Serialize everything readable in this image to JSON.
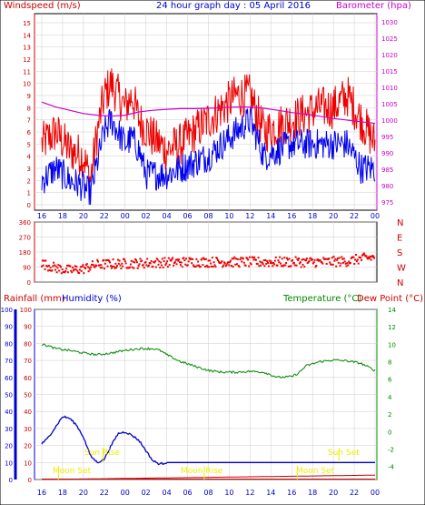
{
  "header": {
    "left_label": "Windspeed (m/s)",
    "center_title": "24 hour graph day : 05 April 2016",
    "right_label": "Barometer (hpa)"
  },
  "mid_header": {
    "left_label": "Rainfall (mm)",
    "humidity_label": "Humidity (%)",
    "temp_label": "Temperature (°C)",
    "dew_label": "Dew Point (°C)"
  },
  "annotations": {
    "sun_rise": "Sun Rise",
    "sun_set": "Sun Set",
    "moon_set_1": "Moon Set",
    "moon_rise": "Moon Rise",
    "moon_set_2": "Moon Set"
  },
  "colors": {
    "wind_gust": "#ee0000",
    "wind_avg": "#0000ee",
    "barometer": "#cc00cc",
    "direction": "#ee0000",
    "rainfall": "#cc0000",
    "humidity": "#0000cc",
    "temperature": "#008800",
    "dewpoint": "#cc0000",
    "grid": "#cccccc",
    "annotation": "#eeee00",
    "frame_left": "#cc0000",
    "frame_right_baro": "#cc00cc",
    "frame_blue": "#0000cc",
    "frame_green": "#008800"
  },
  "chart_data": [
    {
      "type": "line",
      "name": "wind-barometer",
      "x_tick_labels": [
        "16",
        "18",
        "20",
        "22",
        "00",
        "02",
        "04",
        "06",
        "08",
        "10",
        "12",
        "14",
        "16",
        "18",
        "20",
        "22",
        "00"
      ],
      "y_left_ticks": [
        0,
        1,
        2,
        3,
        4,
        5,
        6,
        7,
        8,
        9,
        10,
        11,
        12,
        13,
        14,
        15
      ],
      "y_left_range": [
        0,
        15.6
      ],
      "y_right_ticks": [
        975,
        980,
        985,
        990,
        995,
        1000,
        1005,
        1010,
        1015,
        1020,
        1025,
        1030
      ],
      "y_right_range": [
        972.5,
        1032.5
      ],
      "wind_gust_keypoints": [
        [
          0,
          5
        ],
        [
          1,
          6
        ],
        [
          2,
          4.5
        ],
        [
          3,
          4
        ],
        [
          3.5,
          2
        ],
        [
          4,
          6
        ],
        [
          4.5,
          9
        ],
        [
          5,
          10
        ],
        [
          5.5,
          9
        ],
        [
          6,
          8
        ],
        [
          6.5,
          9
        ],
        [
          7,
          7
        ],
        [
          8,
          5.5
        ],
        [
          9,
          4.5
        ],
        [
          10,
          5
        ],
        [
          11,
          6
        ],
        [
          12,
          7
        ],
        [
          13,
          8
        ],
        [
          14,
          9
        ],
        [
          15,
          9
        ],
        [
          16,
          6
        ],
        [
          18,
          7
        ],
        [
          20,
          8
        ],
        [
          21,
          8
        ],
        [
          22,
          9
        ],
        [
          23,
          7
        ],
        [
          24,
          5
        ]
      ],
      "wind_avg_keypoints": [
        [
          0,
          2
        ],
        [
          1,
          3
        ],
        [
          2,
          2
        ],
        [
          3,
          1.5
        ],
        [
          3.5,
          0.8
        ],
        [
          4,
          3.5
        ],
        [
          4.5,
          6
        ],
        [
          5,
          7
        ],
        [
          5.5,
          6
        ],
        [
          6,
          5
        ],
        [
          6.5,
          5.5
        ],
        [
          7,
          4.5
        ],
        [
          7.5,
          2.5
        ],
        [
          8,
          2.5
        ],
        [
          9,
          2.5
        ],
        [
          10,
          3
        ],
        [
          11,
          3.5
        ],
        [
          12,
          4
        ],
        [
          13,
          5
        ],
        [
          14,
          6
        ],
        [
          15,
          7
        ],
        [
          16,
          4
        ],
        [
          18,
          5
        ],
        [
          20,
          5
        ],
        [
          21,
          5
        ],
        [
          22,
          5
        ],
        [
          23,
          3
        ],
        [
          24,
          3
        ]
      ],
      "barometer": [
        [
          0,
          1005.5
        ],
        [
          1,
          1004
        ],
        [
          2,
          1003
        ],
        [
          3,
          1002
        ],
        [
          4,
          1001.5
        ],
        [
          5,
          1001.2
        ],
        [
          6,
          1001.5
        ],
        [
          7,
          1002.5
        ],
        [
          8,
          1003
        ],
        [
          9,
          1003.3
        ],
        [
          10,
          1003.5
        ],
        [
          11,
          1003.5
        ],
        [
          12,
          1003.6
        ],
        [
          13,
          1003.8
        ],
        [
          14,
          1004
        ],
        [
          15,
          1004
        ],
        [
          16,
          1003.6
        ],
        [
          17,
          1003
        ],
        [
          18,
          1002.3
        ],
        [
          19,
          1001.8
        ],
        [
          20,
          1001.2
        ],
        [
          21,
          1000.5
        ],
        [
          22,
          1000
        ],
        [
          23,
          999.5
        ],
        [
          24,
          999
        ]
      ]
    },
    {
      "type": "scatter",
      "name": "wind-direction",
      "y_ticks": [
        0,
        90,
        180,
        270,
        360
      ],
      "y_range": [
        0,
        360
      ],
      "compass_labels": [
        "N",
        "W",
        "S",
        "E",
        "N"
      ],
      "direction_trend": [
        [
          0,
          110
        ],
        [
          1,
          85
        ],
        [
          2,
          70
        ],
        [
          3,
          80
        ],
        [
          4,
          105
        ],
        [
          6,
          110
        ],
        [
          8,
          115
        ],
        [
          10,
          120
        ],
        [
          12,
          120
        ],
        [
          14,
          120
        ],
        [
          16,
          120
        ],
        [
          18,
          120
        ],
        [
          20,
          120
        ],
        [
          22,
          125
        ],
        [
          23,
          140
        ],
        [
          24,
          150
        ]
      ]
    },
    {
      "type": "line",
      "name": "rain-humidity-temp",
      "y_left_ticks": [
        0,
        10,
        20,
        30,
        40,
        50,
        60,
        70,
        80,
        90,
        100
      ],
      "y_left_range": [
        0,
        100
      ],
      "y_right_ticks": [
        -4,
        -2,
        0,
        2,
        4,
        6,
        8,
        10,
        12,
        14
      ],
      "y_right_range": [
        -5.5,
        14
      ],
      "humidity_percent": [
        [
          0,
          21
        ],
        [
          0.4,
          24
        ],
        [
          1,
          31
        ],
        [
          1.5,
          37
        ],
        [
          2,
          36
        ],
        [
          2.5,
          32
        ],
        [
          3,
          25
        ],
        [
          3.5,
          14
        ],
        [
          4,
          10
        ],
        [
          4.5,
          12
        ],
        [
          5,
          20
        ],
        [
          5.5,
          27
        ],
        [
          6,
          28
        ],
        [
          6.5,
          26
        ],
        [
          7,
          23
        ],
        [
          7.5,
          17
        ],
        [
          8,
          11
        ],
        [
          8.5,
          9
        ],
        [
          9,
          10
        ],
        [
          24,
          10
        ]
      ],
      "temperature_c": [
        [
          0,
          10
        ],
        [
          0.5,
          9.8
        ],
        [
          1,
          9.5
        ],
        [
          2,
          9.3
        ],
        [
          3,
          9.0
        ],
        [
          4,
          8.8
        ],
        [
          5,
          9.0
        ],
        [
          6,
          9.3
        ],
        [
          7,
          9.5
        ],
        [
          8,
          9.5
        ],
        [
          8.5,
          9.3
        ],
        [
          9,
          8.8
        ],
        [
          10,
          8.0
        ],
        [
          11,
          7.5
        ],
        [
          12,
          7.0
        ],
        [
          13,
          6.8
        ],
        [
          14,
          6.8
        ],
        [
          15,
          6.9
        ],
        [
          16,
          6.8
        ],
        [
          17,
          6.2
        ],
        [
          18,
          6.3
        ],
        [
          18.5,
          6.7
        ],
        [
          19,
          7.5
        ],
        [
          20,
          8.0
        ],
        [
          21,
          8.2
        ],
        [
          22,
          8.1
        ],
        [
          23,
          7.8
        ],
        [
          24,
          7.0
        ]
      ],
      "dewpoint_c": [
        [
          0,
          -5.5
        ],
        [
          24,
          -5.0
        ]
      ],
      "rainfall_mm": [
        [
          0,
          0
        ],
        [
          24,
          0
        ]
      ]
    }
  ]
}
